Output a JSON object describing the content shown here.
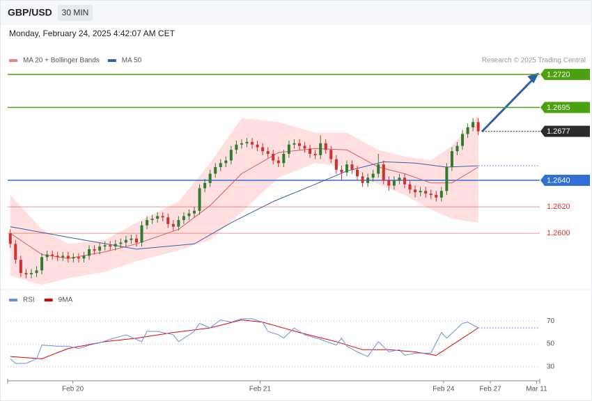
{
  "header": {
    "symbol": "GBP/USD",
    "interval": "30 MIN",
    "timestamp": "Monday, February 24, 2025 4:42:07 AM CET",
    "credit": "Research © 2025 Trading Central"
  },
  "chart_data": [
    {
      "type": "candlestick",
      "up_color": "#2e7d32",
      "down_color": "#d32f2f",
      "open": [
        1.26,
        1.2592,
        1.258,
        1.257,
        1.2569,
        1.257,
        1.2572,
        1.2582,
        1.2584,
        1.2583,
        1.2582,
        1.2583,
        1.2581,
        1.2582,
        1.2581,
        1.2583,
        1.2588,
        1.2587,
        1.259,
        1.2591,
        1.259,
        1.2592,
        1.2593,
        1.2595,
        1.2596,
        1.2593,
        1.2606,
        1.261,
        1.2611,
        1.2613,
        1.2612,
        1.2607,
        1.2605,
        1.261,
        1.2613,
        1.2615,
        1.2617,
        1.2634,
        1.2638,
        1.2645,
        1.265,
        1.2653,
        1.2655,
        1.2663,
        1.2667,
        1.2668,
        1.2669,
        1.2667,
        1.2665,
        1.2662,
        1.266,
        1.2655,
        1.2653,
        1.266,
        1.2667,
        1.2668,
        1.2666,
        1.2664,
        1.266,
        1.2659,
        1.2668,
        1.2663,
        1.2656,
        1.2648,
        1.2646,
        1.2652,
        1.2648,
        1.2643,
        1.2638,
        1.2642,
        1.2645,
        1.2652,
        1.264,
        1.2636,
        1.264,
        1.2642,
        1.2637,
        1.2633,
        1.2631,
        1.2632,
        1.263,
        1.2629,
        1.2627,
        1.2632,
        1.265,
        1.2662,
        1.2666,
        1.2675,
        1.268,
        1.2684
      ],
      "high": [
        1.2603,
        1.2595,
        1.2583,
        1.2573,
        1.2573,
        1.2575,
        1.2585,
        1.2587,
        1.2587,
        1.2586,
        1.2586,
        1.2586,
        1.2585,
        1.2585,
        1.2586,
        1.2591,
        1.2591,
        1.2593,
        1.2594,
        1.2594,
        1.2595,
        1.2596,
        1.2598,
        1.2599,
        1.2599,
        1.2609,
        1.2613,
        1.2614,
        1.2616,
        1.2616,
        1.2615,
        1.261,
        1.2613,
        1.2616,
        1.2618,
        1.262,
        1.2637,
        1.2641,
        1.2648,
        1.2653,
        1.2656,
        1.2658,
        1.2666,
        1.267,
        1.2671,
        1.2672,
        1.2672,
        1.267,
        1.2668,
        1.2665,
        1.2663,
        1.2658,
        1.2663,
        1.267,
        1.2671,
        1.2671,
        1.2669,
        1.2667,
        1.2663,
        1.2674,
        1.2671,
        1.2666,
        1.2659,
        1.2651,
        1.2655,
        1.2655,
        1.2651,
        1.2646,
        1.2645,
        1.2648,
        1.266,
        1.2655,
        1.2643,
        1.2643,
        1.2645,
        1.2645,
        1.264,
        1.2636,
        1.2635,
        1.2635,
        1.2633,
        1.2632,
        1.2635,
        1.2653,
        1.2665,
        1.2669,
        1.2678,
        1.2683,
        1.2687,
        1.2687
      ],
      "low": [
        1.2589,
        1.2577,
        1.2567,
        1.2566,
        1.2566,
        1.2567,
        1.2569,
        1.2579,
        1.258,
        1.2579,
        1.2579,
        1.2578,
        1.2578,
        1.2578,
        1.2578,
        1.258,
        1.2584,
        1.2584,
        1.2587,
        1.2587,
        1.2587,
        1.2589,
        1.259,
        1.2592,
        1.259,
        1.259,
        1.2603,
        1.2607,
        1.2608,
        1.2609,
        1.2604,
        1.2602,
        1.2602,
        1.2607,
        1.261,
        1.2612,
        1.2614,
        1.2631,
        1.2635,
        1.2642,
        1.2647,
        1.265,
        1.2652,
        1.266,
        1.2664,
        1.2665,
        1.2664,
        1.2662,
        1.2659,
        1.2657,
        1.2652,
        1.265,
        1.265,
        1.2657,
        1.2664,
        1.2663,
        1.2661,
        1.2657,
        1.2656,
        1.2656,
        1.266,
        1.2653,
        1.2645,
        1.264,
        1.2643,
        1.2645,
        1.264,
        1.2635,
        1.2635,
        1.2639,
        1.2642,
        1.2637,
        1.2632,
        1.2633,
        1.2637,
        1.2634,
        1.263,
        1.2627,
        1.2628,
        1.2627,
        1.2626,
        1.2624,
        1.2624,
        1.2629,
        1.2647,
        1.2659,
        1.2663,
        1.2672,
        1.2677,
        1.2674
      ],
      "close": [
        1.2592,
        1.258,
        1.257,
        1.2569,
        1.257,
        1.2572,
        1.2582,
        1.2584,
        1.2583,
        1.2582,
        1.2583,
        1.2581,
        1.2582,
        1.2581,
        1.2583,
        1.2588,
        1.2587,
        1.259,
        1.2591,
        1.259,
        1.2592,
        1.2593,
        1.2595,
        1.2596,
        1.2593,
        1.2606,
        1.261,
        1.2611,
        1.2613,
        1.2612,
        1.2607,
        1.2605,
        1.261,
        1.2613,
        1.2615,
        1.2617,
        1.2634,
        1.2638,
        1.2645,
        1.265,
        1.2653,
        1.2655,
        1.2663,
        1.2667,
        1.2668,
        1.2669,
        1.2667,
        1.2665,
        1.2662,
        1.266,
        1.2655,
        1.2653,
        1.266,
        1.2667,
        1.2668,
        1.2666,
        1.2664,
        1.266,
        1.2659,
        1.2668,
        1.2663,
        1.2656,
        1.2648,
        1.2646,
        1.2652,
        1.2648,
        1.2643,
        1.2638,
        1.2642,
        1.2645,
        1.2652,
        1.264,
        1.2636,
        1.264,
        1.2642,
        1.2637,
        1.2633,
        1.2631,
        1.2632,
        1.263,
        1.2629,
        1.2627,
        1.2632,
        1.265,
        1.2662,
        1.2666,
        1.2675,
        1.268,
        1.2684,
        1.2677
      ],
      "series": [
        {
          "name": "MA 20 + Bollinger Bands",
          "color": "#e05a5a",
          "band_color": "#ffd9d9",
          "x": [
            0,
            6,
            11,
            18,
            24,
            32,
            38,
            44,
            51,
            58,
            64,
            70,
            75,
            80,
            84,
            89
          ],
          "values": [
            1.26,
            1.2584,
            1.2581,
            1.2586,
            1.2592,
            1.2603,
            1.2621,
            1.2645,
            1.2661,
            1.2664,
            1.2663,
            1.265,
            1.2645,
            1.2638,
            1.2638,
            1.265
          ],
          "upper": [
            1.2629,
            1.2603,
            1.2592,
            1.2595,
            1.2608,
            1.2624,
            1.2653,
            1.2687,
            1.2684,
            1.2676,
            1.2676,
            1.2663,
            1.2658,
            1.2655,
            1.2666,
            1.2689
          ],
          "lower": [
            1.2568,
            1.2561,
            1.2566,
            1.2571,
            1.2579,
            1.2587,
            1.2595,
            1.2616,
            1.2642,
            1.2653,
            1.265,
            1.2637,
            1.2629,
            1.2618,
            1.2611,
            1.2608
          ]
        },
        {
          "name": "MA 50",
          "color": "#3b5ea8",
          "x": [
            0,
            11,
            24,
            35,
            42,
            50,
            58,
            64,
            71,
            77,
            83,
            89
          ],
          "values": [
            1.2605,
            1.2597,
            1.2588,
            1.2592,
            1.2608,
            1.2624,
            1.2637,
            1.2647,
            1.2654,
            1.2653,
            1.265,
            1.2651
          ]
        }
      ],
      "levels": [
        {
          "value": 1.272,
          "label": "1.2720",
          "color": "#4ca10f",
          "boxed": true
        },
        {
          "value": 1.2695,
          "label": "1.2695",
          "color": "#4ca10f",
          "boxed": true
        },
        {
          "value": 1.2677,
          "label": "1.2677",
          "color": "#2b2b2b",
          "boxed": true,
          "dotted": true
        },
        {
          "value": 1.264,
          "label": "1.2640",
          "color": "#2f6fd6",
          "boxed": true
        },
        {
          "value": 1.262,
          "label": "1.2620",
          "color": "#e03030",
          "boxed": false
        },
        {
          "value": 1.26,
          "label": "1.2600",
          "color": "#e03030",
          "boxed": false
        }
      ],
      "ylim": [
        1.2558,
        1.2742
      ],
      "xlim": [
        -0.5,
        100.7
      ],
      "xticks": [
        {
          "value": 11.9,
          "label": "Feb 20"
        },
        {
          "value": 47.5,
          "label": "Feb 21"
        },
        {
          "value": 82.4,
          "label": "Feb 24"
        },
        {
          "value": 91.3,
          "label": "Feb 27"
        },
        {
          "value": 100.1,
          "label": "Mar 11"
        }
      ]
    },
    {
      "type": "line",
      "series": [
        {
          "name": "RSI",
          "color": "#6b8fe0",
          "x": [
            0,
            1,
            3,
            5,
            6,
            9,
            11,
            13,
            15,
            17,
            19,
            22,
            25,
            26,
            28,
            31,
            32,
            35,
            36,
            38,
            40,
            42,
            44,
            46,
            48,
            49,
            51,
            52,
            54,
            56,
            59,
            62,
            63,
            64,
            66,
            68,
            70,
            72,
            74,
            75,
            77,
            80,
            82,
            83,
            86,
            87,
            89
          ],
          "values": [
            37,
            33,
            33,
            37,
            49,
            48,
            48,
            46,
            49,
            51,
            54,
            58,
            52,
            61,
            61,
            58,
            52,
            61,
            68,
            64,
            71,
            69,
            72,
            72,
            69,
            61,
            58,
            55,
            64,
            58,
            54,
            49,
            55,
            48,
            43,
            39,
            52,
            43,
            45,
            40,
            42,
            42,
            60,
            55,
            68,
            69,
            64
          ]
        },
        {
          "name": "9MA",
          "color": "#e00000",
          "x": [
            0,
            6,
            11,
            18,
            24,
            31,
            38,
            44,
            48,
            55,
            62,
            67,
            72,
            77,
            81,
            84,
            89
          ],
          "values": [
            39,
            37,
            46,
            52,
            55,
            60,
            64,
            71,
            69,
            60,
            52,
            45,
            45,
            43,
            40,
            49,
            64
          ]
        }
      ],
      "ylim": [
        19,
        92
      ],
      "yticks": [
        30,
        50,
        70
      ],
      "grid": true
    }
  ]
}
